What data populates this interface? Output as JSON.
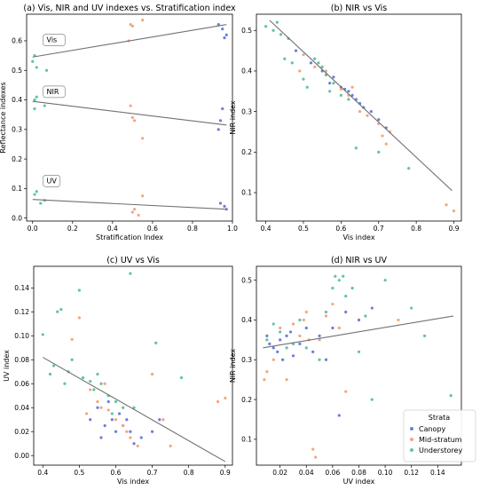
{
  "colors": {
    "Canopy": "#6b7fd7",
    "Mid-stratum": "#f4a582",
    "Understorey": "#5ec5a0",
    "fit": "#707070"
  },
  "legend": {
    "title": "Strata",
    "entries": [
      "Canopy",
      "Mid-stratum",
      "Understorey"
    ]
  },
  "chart_data": [
    {
      "type": "scatter",
      "title": "(a) Vis, NIR and UV indexes vs. Stratification index",
      "xlabel": "Stratification Index",
      "ylabel": "Reflectance indexes",
      "xlim": [
        -0.03,
        1.0
      ],
      "ylim": [
        -0.01,
        0.69
      ],
      "xticks": [
        0.0,
        0.2,
        0.4,
        0.6,
        0.8,
        1.0
      ],
      "xtick_labels": [
        "0.0",
        "0.2",
        "0.4",
        "0.6",
        "0.8",
        "1.0"
      ],
      "yticks": [
        0.0,
        0.1,
        0.2,
        0.3,
        0.4,
        0.5,
        0.6
      ],
      "ytick_labels": [
        "0.0",
        "0.1",
        "0.2",
        "0.3",
        "0.4",
        "0.5",
        "0.6"
      ],
      "annotations": [
        {
          "text": "Vis",
          "x": 0.07,
          "y": 0.595
        },
        {
          "text": "NIR",
          "x": 0.07,
          "y": 0.42
        },
        {
          "text": "UV",
          "x": 0.07,
          "y": 0.118
        }
      ],
      "fits": [
        {
          "x": [
            0.0,
            0.97
          ],
          "y": [
            0.545,
            0.655
          ]
        },
        {
          "x": [
            0.0,
            0.97
          ],
          "y": [
            0.395,
            0.315
          ]
        },
        {
          "x": [
            0.0,
            0.97
          ],
          "y": [
            0.063,
            0.03
          ]
        }
      ],
      "series": [
        {
          "name": "Canopy",
          "points": [
            [
              0.93,
              0.655
            ],
            [
              0.95,
              0.64
            ],
            [
              0.96,
              0.61
            ],
            [
              0.97,
              0.62
            ],
            [
              0.94,
              0.33
            ],
            [
              0.95,
              0.37
            ],
            [
              0.93,
              0.3
            ],
            [
              0.96,
              0.04
            ],
            [
              0.94,
              0.05
            ],
            [
              0.97,
              0.03
            ]
          ]
        },
        {
          "name": "Mid-stratum",
          "points": [
            [
              0.49,
              0.655
            ],
            [
              0.5,
              0.65
            ],
            [
              0.55,
              0.67
            ],
            [
              0.48,
              0.6
            ],
            [
              0.5,
              0.34
            ],
            [
              0.49,
              0.38
            ],
            [
              0.51,
              0.33
            ],
            [
              0.55,
              0.27
            ],
            [
              0.5,
              0.02
            ],
            [
              0.51,
              0.03
            ],
            [
              0.55,
              0.075
            ],
            [
              0.53,
              0.01
            ]
          ]
        },
        {
          "name": "Understorey",
          "points": [
            [
              0.01,
              0.55
            ],
            [
              0.02,
              0.51
            ],
            [
              0.07,
              0.5
            ],
            [
              0.0,
              0.53
            ],
            [
              0.01,
              0.4
            ],
            [
              0.02,
              0.41
            ],
            [
              0.06,
              0.38
            ],
            [
              0.01,
              0.37
            ],
            [
              0.02,
              0.09
            ],
            [
              0.04,
              0.05
            ],
            [
              0.01,
              0.08
            ],
            [
              0.06,
              0.06
            ]
          ]
        }
      ]
    },
    {
      "type": "scatter",
      "title": "(b) NIR vs Vis",
      "xlabel": "Vis index",
      "ylabel": "NIR index",
      "xlim": [
        0.375,
        0.92
      ],
      "ylim": [
        0.03,
        0.54
      ],
      "xticks": [
        0.4,
        0.5,
        0.6,
        0.7,
        0.8,
        0.9
      ],
      "xtick_labels": [
        "0.4",
        "0.5",
        "0.6",
        "0.7",
        "0.8",
        "0.9"
      ],
      "yticks": [
        0.1,
        0.2,
        0.3,
        0.4,
        0.5
      ],
      "ytick_labels": [
        "0.1",
        "0.2",
        "0.3",
        "0.4",
        "0.5"
      ],
      "fits": [
        {
          "x": [
            0.41,
            0.895
          ],
          "y": [
            0.525,
            0.105
          ]
        }
      ],
      "series": [
        {
          "name": "Canopy",
          "points": [
            [
              0.48,
              0.45
            ],
            [
              0.52,
              0.42
            ],
            [
              0.55,
              0.4
            ],
            [
              0.58,
              0.385
            ],
            [
              0.6,
              0.36
            ],
            [
              0.62,
              0.35
            ],
            [
              0.63,
              0.34
            ],
            [
              0.64,
              0.33
            ],
            [
              0.66,
              0.31
            ],
            [
              0.68,
              0.3
            ],
            [
              0.7,
              0.28
            ],
            [
              0.72,
              0.26
            ],
            [
              0.57,
              0.37
            ],
            [
              0.61,
              0.355
            ],
            [
              0.65,
              0.32
            ]
          ]
        },
        {
          "name": "Mid-stratum",
          "points": [
            [
              0.5,
              0.44
            ],
            [
              0.53,
              0.41
            ],
            [
              0.56,
              0.4
            ],
            [
              0.6,
              0.355
            ],
            [
              0.62,
              0.34
            ],
            [
              0.63,
              0.36
            ],
            [
              0.65,
              0.3
            ],
            [
              0.7,
              0.27
            ],
            [
              0.72,
              0.22
            ],
            [
              0.73,
              0.25
            ],
            [
              0.88,
              0.07
            ],
            [
              0.9,
              0.055
            ],
            [
              0.49,
              0.4
            ],
            [
              0.67,
              0.29
            ],
            [
              0.71,
              0.24
            ]
          ]
        },
        {
          "name": "Understorey",
          "points": [
            [
              0.4,
              0.51
            ],
            [
              0.42,
              0.5
            ],
            [
              0.43,
              0.52
            ],
            [
              0.44,
              0.49
            ],
            [
              0.45,
              0.43
            ],
            [
              0.46,
              0.48
            ],
            [
              0.47,
              0.42
            ],
            [
              0.5,
              0.38
            ],
            [
              0.51,
              0.36
            ],
            [
              0.53,
              0.43
            ],
            [
              0.55,
              0.41
            ],
            [
              0.56,
              0.39
            ],
            [
              0.58,
              0.37
            ],
            [
              0.6,
              0.34
            ],
            [
              0.64,
              0.21
            ],
            [
              0.7,
              0.2
            ],
            [
              0.78,
              0.16
            ],
            [
              0.54,
              0.42
            ],
            [
              0.57,
              0.35
            ],
            [
              0.62,
              0.33
            ]
          ]
        }
      ]
    },
    {
      "type": "scatter",
      "title": "(c) UV vs Vis",
      "xlabel": "Vis index",
      "ylabel": "UV index",
      "xlim": [
        0.375,
        0.92
      ],
      "ylim": [
        -0.008,
        0.158
      ],
      "xticks": [
        0.4,
        0.5,
        0.6,
        0.7,
        0.8,
        0.9
      ],
      "xtick_labels": [
        "0.4",
        "0.5",
        "0.6",
        "0.7",
        "0.8",
        "0.9"
      ],
      "yticks": [
        0.0,
        0.02,
        0.04,
        0.06,
        0.08,
        0.1,
        0.12,
        0.14
      ],
      "ytick_labels": [
        "0.00",
        "0.02",
        "0.04",
        "0.06",
        "0.08",
        "0.10",
        "0.12",
        "0.14"
      ],
      "fits": [
        {
          "x": [
            0.4,
            0.9
          ],
          "y": [
            0.082,
            -0.005
          ]
        }
      ],
      "series": [
        {
          "name": "Canopy",
          "points": [
            [
              0.53,
              0.03
            ],
            [
              0.55,
              0.04
            ],
            [
              0.57,
              0.025
            ],
            [
              0.59,
              0.03
            ],
            [
              0.6,
              0.02
            ],
            [
              0.61,
              0.035
            ],
            [
              0.62,
              0.025
            ],
            [
              0.63,
              0.03
            ],
            [
              0.64,
              0.02
            ],
            [
              0.65,
              0.01
            ],
            [
              0.67,
              0.015
            ],
            [
              0.7,
              0.02
            ],
            [
              0.72,
              0.03
            ],
            [
              0.56,
              0.015
            ],
            [
              0.58,
              0.045
            ]
          ]
        },
        {
          "name": "Mid-stratum",
          "points": [
            [
              0.48,
              0.097
            ],
            [
              0.5,
              0.115
            ],
            [
              0.53,
              0.055
            ],
            [
              0.55,
              0.045
            ],
            [
              0.56,
              0.04
            ],
            [
              0.58,
              0.038
            ],
            [
              0.6,
              0.03
            ],
            [
              0.62,
              0.025
            ],
            [
              0.63,
              0.02
            ],
            [
              0.66,
              0.008
            ],
            [
              0.7,
              0.068
            ],
            [
              0.73,
              0.03
            ],
            [
              0.75,
              0.008
            ],
            [
              0.88,
              0.045
            ],
            [
              0.9,
              0.048
            ],
            [
              0.52,
              0.035
            ],
            [
              0.57,
              0.06
            ],
            [
              0.64,
              0.015
            ]
          ]
        },
        {
          "name": "Understorey",
          "points": [
            [
              0.4,
              0.101
            ],
            [
              0.42,
              0.068
            ],
            [
              0.43,
              0.075
            ],
            [
              0.44,
              0.12
            ],
            [
              0.45,
              0.122
            ],
            [
              0.46,
              0.06
            ],
            [
              0.48,
              0.08
            ],
            [
              0.5,
              0.138
            ],
            [
              0.51,
              0.065
            ],
            [
              0.53,
              0.062
            ],
            [
              0.55,
              0.068
            ],
            [
              0.56,
              0.06
            ],
            [
              0.58,
              0.05
            ],
            [
              0.6,
              0.045
            ],
            [
              0.62,
              0.04
            ],
            [
              0.64,
              0.152
            ],
            [
              0.65,
              0.04
            ],
            [
              0.71,
              0.094
            ],
            [
              0.78,
              0.065
            ],
            [
              0.47,
              0.07
            ],
            [
              0.54,
              0.055
            ],
            [
              0.59,
              0.035
            ]
          ]
        }
      ]
    },
    {
      "type": "scatter",
      "title": "(d) NIR vs UV",
      "xlabel": "UV index",
      "ylabel": "NIR index",
      "xlim": [
        0.002,
        0.158
      ],
      "ylim": [
        0.035,
        0.535
      ],
      "xticks": [
        0.02,
        0.04,
        0.06,
        0.08,
        0.1,
        0.12,
        0.14
      ],
      "xtick_labels": [
        "0.02",
        "0.04",
        "0.06",
        "0.08",
        "0.10",
        "0.12",
        "0.14"
      ],
      "yticks": [
        0.1,
        0.2,
        0.3,
        0.4,
        0.5
      ],
      "ytick_labels": [
        "0.1",
        "0.2",
        "0.3",
        "0.4",
        "0.5"
      ],
      "fits": [
        {
          "x": [
            0.007,
            0.152
          ],
          "y": [
            0.33,
            0.41
          ]
        }
      ],
      "series": [
        {
          "name": "Canopy",
          "points": [
            [
              0.01,
              0.36
            ],
            [
              0.012,
              0.34
            ],
            [
              0.015,
              0.33
            ],
            [
              0.018,
              0.32
            ],
            [
              0.02,
              0.35
            ],
            [
              0.022,
              0.3
            ],
            [
              0.025,
              0.36
            ],
            [
              0.028,
              0.37
            ],
            [
              0.03,
              0.31
            ],
            [
              0.035,
              0.34
            ],
            [
              0.04,
              0.38
            ],
            [
              0.045,
              0.32
            ],
            [
              0.05,
              0.36
            ],
            [
              0.055,
              0.3
            ],
            [
              0.06,
              0.38
            ],
            [
              0.065,
              0.16
            ],
            [
              0.07,
              0.42
            ],
            [
              0.08,
              0.4
            ],
            [
              0.09,
              0.43
            ]
          ]
        },
        {
          "name": "Mid-stratum",
          "points": [
            [
              0.008,
              0.25
            ],
            [
              0.01,
              0.27
            ],
            [
              0.015,
              0.3
            ],
            [
              0.02,
              0.38
            ],
            [
              0.025,
              0.25
            ],
            [
              0.03,
              0.39
            ],
            [
              0.035,
              0.36
            ],
            [
              0.038,
              0.4
            ],
            [
              0.04,
              0.42
            ],
            [
              0.042,
              0.35
            ],
            [
              0.045,
              0.075
            ],
            [
              0.047,
              0.055
            ],
            [
              0.05,
              0.35
            ],
            [
              0.055,
              0.41
            ],
            [
              0.06,
              0.44
            ],
            [
              0.065,
              0.38
            ],
            [
              0.07,
              0.22
            ],
            [
              0.11,
              0.4
            ]
          ]
        },
        {
          "name": "Understorey",
          "points": [
            [
              0.01,
              0.35
            ],
            [
              0.015,
              0.39
            ],
            [
              0.02,
              0.37
            ],
            [
              0.025,
              0.33
            ],
            [
              0.03,
              0.34
            ],
            [
              0.035,
              0.4
            ],
            [
              0.04,
              0.33
            ],
            [
              0.05,
              0.3
            ],
            [
              0.055,
              0.42
            ],
            [
              0.06,
              0.48
            ],
            [
              0.062,
              0.51
            ],
            [
              0.065,
              0.5
            ],
            [
              0.068,
              0.51
            ],
            [
              0.07,
              0.46
            ],
            [
              0.075,
              0.48
            ],
            [
              0.08,
              0.32
            ],
            [
              0.085,
              0.41
            ],
            [
              0.09,
              0.2
            ],
            [
              0.1,
              0.5
            ],
            [
              0.12,
              0.43
            ],
            [
              0.13,
              0.36
            ],
            [
              0.15,
              0.21
            ]
          ]
        }
      ]
    }
  ]
}
